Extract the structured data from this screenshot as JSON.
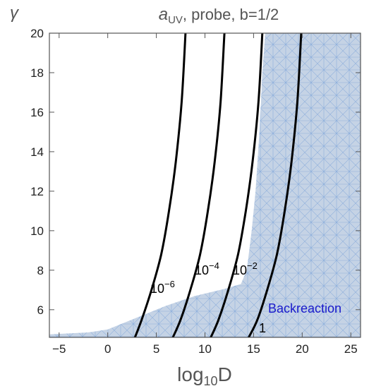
{
  "chart_data": {
    "type": "contour",
    "title_main": "a",
    "title_sub": "UV",
    "title_rest": ", probe, b=1/2",
    "xlabel_main": "log",
    "xlabel_sub": "10",
    "xlabel_rest": "D",
    "ylabel": "γ",
    "xlim": [
      -6,
      26
    ],
    "ylim": [
      4.6,
      20
    ],
    "x_ticks": [
      -5,
      0,
      5,
      10,
      15,
      20,
      25
    ],
    "x_tick_labels": [
      "−5",
      "0",
      "5",
      "10",
      "15",
      "20",
      "25"
    ],
    "y_ticks": [
      6,
      8,
      10,
      12,
      14,
      16,
      18,
      20
    ],
    "y_tick_labels": [
      "6",
      "8",
      "10",
      "12",
      "14",
      "16",
      "18",
      "20"
    ],
    "grid": false,
    "region": {
      "name": "Backreaction",
      "color": "#c5d3e5",
      "hatch_color": "#8fb0dc",
      "label_color": "#1a1acc",
      "boundary": [
        [
          -6,
          4.6
        ],
        [
          -6,
          4.75
        ],
        [
          -2,
          4.85
        ],
        [
          0,
          5.0
        ],
        [
          3,
          5.6
        ],
        [
          6,
          6.2
        ],
        [
          9,
          6.7
        ],
        [
          12,
          7.05
        ],
        [
          13.7,
          7.3
        ],
        [
          14.3,
          8.0
        ],
        [
          14.8,
          10.0
        ],
        [
          15.2,
          12.0
        ],
        [
          15.6,
          15.0
        ],
        [
          15.9,
          18.0
        ],
        [
          16.2,
          20
        ],
        [
          26,
          20
        ],
        [
          26,
          4.6
        ]
      ]
    },
    "contours": [
      {
        "level_base": "10",
        "level_exp": "−6",
        "points": [
          [
            2.8,
            4.6
          ],
          [
            3.5,
            5.5
          ],
          [
            4.5,
            7.0
          ],
          [
            5.5,
            8.8
          ],
          [
            6.3,
            11.0
          ],
          [
            7.0,
            13.5
          ],
          [
            7.6,
            16.5
          ],
          [
            8.0,
            20
          ]
        ]
      },
      {
        "level_base": "10",
        "level_exp": "−4",
        "points": [
          [
            6.7,
            4.6
          ],
          [
            7.5,
            5.5
          ],
          [
            8.5,
            7.0
          ],
          [
            9.5,
            8.8
          ],
          [
            10.3,
            11.0
          ],
          [
            11.0,
            13.5
          ],
          [
            11.6,
            16.5
          ],
          [
            12.0,
            20
          ]
        ]
      },
      {
        "level_base": "10",
        "level_exp": "−2",
        "points": [
          [
            10.6,
            4.6
          ],
          [
            11.4,
            5.5
          ],
          [
            12.4,
            7.0
          ],
          [
            13.4,
            8.8
          ],
          [
            14.2,
            11.0
          ],
          [
            14.9,
            13.5
          ],
          [
            15.5,
            16.5
          ],
          [
            15.9,
            20
          ]
        ]
      },
      {
        "level_base": "1",
        "level_exp": "",
        "points": [
          [
            14.5,
            4.6
          ],
          [
            15.4,
            5.5
          ],
          [
            16.4,
            7.0
          ],
          [
            17.4,
            8.8
          ],
          [
            18.2,
            11.0
          ],
          [
            18.9,
            13.5
          ],
          [
            19.5,
            16.5
          ],
          [
            19.9,
            20
          ]
        ]
      }
    ]
  }
}
